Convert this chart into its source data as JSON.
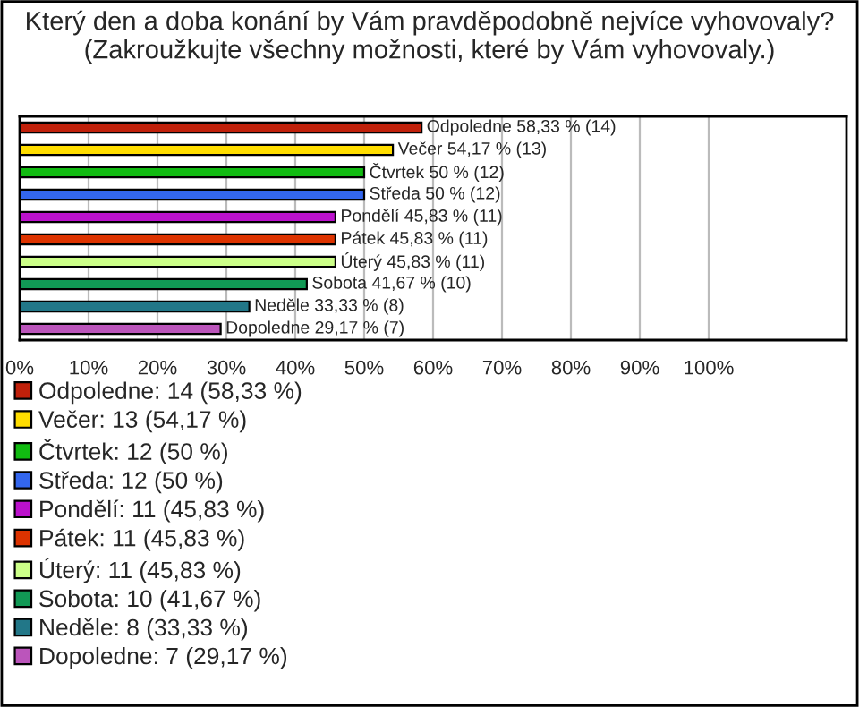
{
  "chart_data": {
    "type": "bar",
    "orientation": "horizontal",
    "title": "Který den a doba konání by Vám pravděpodobně nejvíce vyhovovaly? (Zakroužkujte všechny možnosti, které by Vám vyhovovaly.)",
    "categories": [
      null,
      null,
      null,
      null,
      null,
      null,
      null,
      null,
      null,
      null
    ],
    "series": [
      {
        "name": "Odpoledne: 14 (58,33 %)",
        "color": "#c0200a",
        "values": [
          58.33,
          null,
          null,
          null,
          null,
          null,
          null,
          null,
          null,
          null
        ],
        "value_labels": [
          "Odpoledne 58,33 % (14)",
          null,
          null,
          null,
          null,
          null,
          null,
          null,
          null,
          null
        ]
      },
      {
        "name": "Večer: 13 (54,17 %)",
        "color": "#ffdd00",
        "values": [
          null,
          54.17,
          null,
          null,
          null,
          null,
          null,
          null,
          null,
          null
        ],
        "value_labels": [
          null,
          "Večer 54,17 % (13)",
          null,
          null,
          null,
          null,
          null,
          null,
          null,
          null
        ]
      },
      {
        "name": "Čtvrtek: 12 (50 %)",
        "color": "#11bb11",
        "values": [
          null,
          null,
          50,
          null,
          null,
          null,
          null,
          null,
          null,
          null
        ],
        "value_labels": [
          null,
          null,
          "Čtvrtek 50 % (12)",
          null,
          null,
          null,
          null,
          null,
          null,
          null
        ]
      },
      {
        "name": "Středa: 12 (50 %)",
        "color": "#3366ee",
        "values": [
          null,
          null,
          null,
          50,
          null,
          null,
          null,
          null,
          null,
          null
        ],
        "value_labels": [
          null,
          null,
          null,
          "Středa 50 % (12)",
          null,
          null,
          null,
          null,
          null,
          null
        ]
      },
      {
        "name": "Pondělí: 11 (45,83 %)",
        "color": "#bb11cc",
        "values": [
          null,
          null,
          null,
          null,
          45.83,
          null,
          null,
          null,
          null,
          null
        ],
        "value_labels": [
          null,
          null,
          null,
          null,
          "Pondělí 45,83 % (11)",
          null,
          null,
          null,
          null,
          null
        ]
      },
      {
        "name": "Pátek: 11 (45,83 %)",
        "color": "#dd3300",
        "values": [
          null,
          null,
          null,
          null,
          null,
          45.83,
          null,
          null,
          null,
          null
        ],
        "value_labels": [
          null,
          null,
          null,
          null,
          null,
          "Pátek 45,83 % (11)",
          null,
          null,
          null,
          null
        ]
      },
      {
        "name": "Úterý: 11 (45,83 %)",
        "color": "#ccff88",
        "values": [
          null,
          null,
          null,
          null,
          null,
          null,
          45.83,
          null,
          null,
          null
        ],
        "value_labels": [
          null,
          null,
          null,
          null,
          null,
          null,
          "Úterý 45,83 % (11)",
          null,
          null,
          null
        ]
      },
      {
        "name": "Sobota: 10 (41,67 %)",
        "color": "#119955",
        "values": [
          null,
          null,
          null,
          null,
          null,
          null,
          null,
          41.67,
          null,
          null
        ],
        "value_labels": [
          null,
          null,
          null,
          null,
          null,
          null,
          null,
          "Sobota 41,67 % (10)",
          null,
          null
        ]
      },
      {
        "name": "Neděle: 8 (33,33 %)",
        "color": "#227788",
        "values": [
          null,
          null,
          null,
          null,
          null,
          null,
          null,
          null,
          33.33,
          null
        ],
        "value_labels": [
          null,
          null,
          null,
          null,
          null,
          null,
          null,
          null,
          "Neděle 33,33 % (8)",
          null
        ]
      },
      {
        "name": "Dopoledne: 7 (29,17 %)",
        "color": "#bb55bb",
        "values": [
          null,
          null,
          null,
          null,
          null,
          null,
          null,
          null,
          null,
          29.17
        ],
        "value_labels": [
          null,
          null,
          null,
          null,
          null,
          null,
          null,
          null,
          null,
          "Dopoledne 29,17 % (7)"
        ]
      }
    ],
    "xlim": [
      0,
      120
    ],
    "xticks": [
      {
        "value": 0,
        "label": "0%"
      },
      {
        "value": 10,
        "label": "10%"
      },
      {
        "value": 20,
        "label": "20%"
      },
      {
        "value": 30,
        "label": "30%"
      },
      {
        "value": 40,
        "label": "40%"
      },
      {
        "value": 50,
        "label": "50%"
      },
      {
        "value": 60,
        "label": "60%"
      },
      {
        "value": 70,
        "label": "70%"
      },
      {
        "value": 80,
        "label": "80%"
      },
      {
        "value": 90,
        "label": "90%"
      },
      {
        "value": 100,
        "label": "100%"
      }
    ],
    "grid": "x",
    "legend": "bottom"
  }
}
